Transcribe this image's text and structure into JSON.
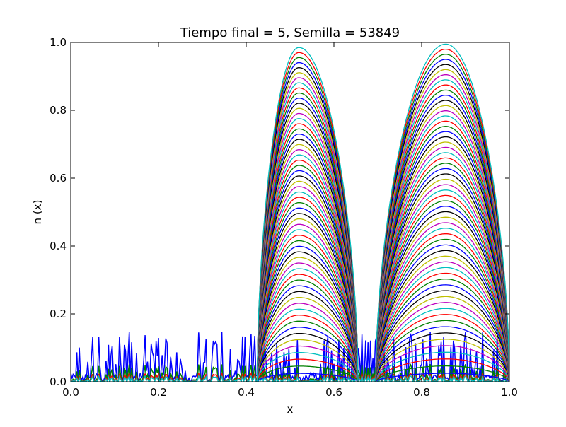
{
  "chart_data": {
    "type": "line",
    "title": "Tiempo final = 5, Semilla = 53849",
    "xlabel": "x",
    "ylabel": "n (x)",
    "xlim": [
      0.0,
      1.0
    ],
    "ylim": [
      0.0,
      1.0
    ],
    "xticks": [
      "0.0",
      "0.2",
      "0.4",
      "0.6",
      "0.8",
      "1.0"
    ],
    "yticks": [
      "0.0",
      "0.2",
      "0.4",
      "0.6",
      "0.8",
      "1.0"
    ],
    "grid": false,
    "legend": "none",
    "series_count": 60,
    "color_cycle": [
      "#0000ff",
      "#008000",
      "#ff0000",
      "#00bfbf",
      "#bf00bf",
      "#bfbf00",
      "#000000"
    ],
    "initial_noise": {
      "color": "#0000ff",
      "ymax": 0.3
    },
    "bumps": [
      {
        "x_start": 0.425,
        "x_end": 0.655,
        "x_peak": 0.52,
        "peak_final": 0.985
      },
      {
        "x_start": 0.695,
        "x_end": 1.0,
        "x_peak": 0.855,
        "peak_final": 0.995
      }
    ],
    "final_color": "#00bfbf"
  }
}
